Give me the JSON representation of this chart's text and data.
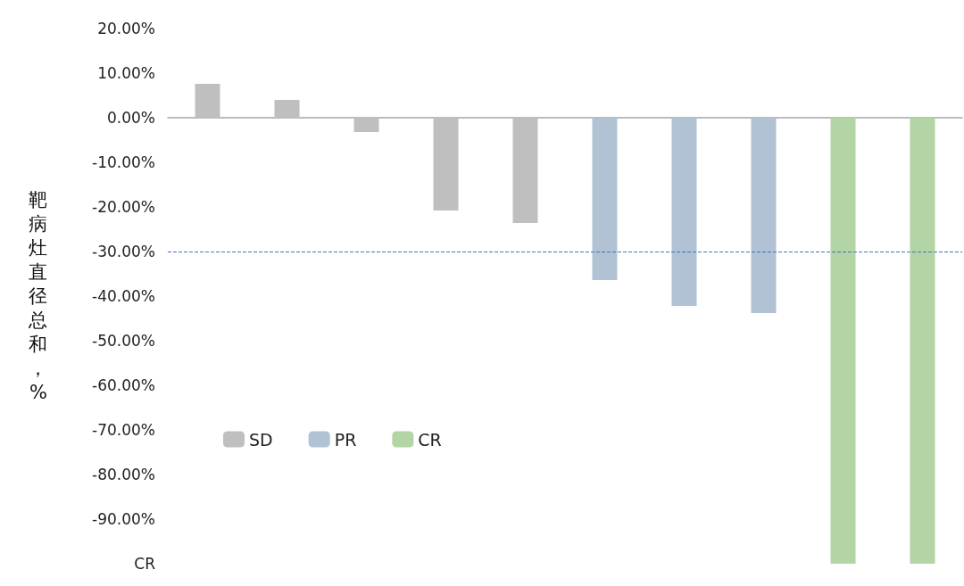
{
  "chart_data": {
    "type": "bar",
    "ylabel": "靶病灶直径总和，%",
    "categories": [
      null,
      null,
      null,
      null,
      null,
      null,
      null,
      null,
      null,
      null
    ],
    "series": [
      {
        "name": "SD",
        "color": "#bfbfbf",
        "values": [
          7.6,
          4,
          -3.2,
          -20.8,
          -23.6,
          null,
          null,
          null,
          null,
          null
        ]
      },
      {
        "name": "PR",
        "color": "#b0c2d4",
        "values": [
          null,
          null,
          null,
          null,
          null,
          -36.4,
          -42.2,
          -43.8,
          null,
          null
        ]
      },
      {
        "name": "CR",
        "color": "#b3d4a5",
        "values": [
          null,
          null,
          null,
          null,
          null,
          null,
          null,
          null,
          -100,
          -100
        ]
      }
    ],
    "ylim": [
      -100,
      20
    ],
    "yticks": [
      {
        "value": 20,
        "label": "20.00%"
      },
      {
        "value": 10,
        "label": "10.00%"
      },
      {
        "value": 0,
        "label": "0.00%"
      },
      {
        "value": -10,
        "label": "-10.00%"
      },
      {
        "value": -20,
        "label": "-20.00%"
      },
      {
        "value": -30,
        "label": "-30.00%"
      },
      {
        "value": -40,
        "label": "-40.00%"
      },
      {
        "value": -50,
        "label": "-50.00%"
      },
      {
        "value": -60,
        "label": "-60.00%"
      },
      {
        "value": -70,
        "label": "-70.00%"
      },
      {
        "value": -80,
        "label": "-80.00%"
      },
      {
        "value": -90,
        "label": "-90.00%"
      },
      {
        "value": -100,
        "label": "CR"
      }
    ],
    "ref_lines": [
      {
        "axis": "y",
        "value": -30,
        "color": "#4472c4",
        "line_style": "dashed"
      }
    ],
    "legend": "bottom left",
    "grid": false,
    "tick_labels": "y"
  }
}
